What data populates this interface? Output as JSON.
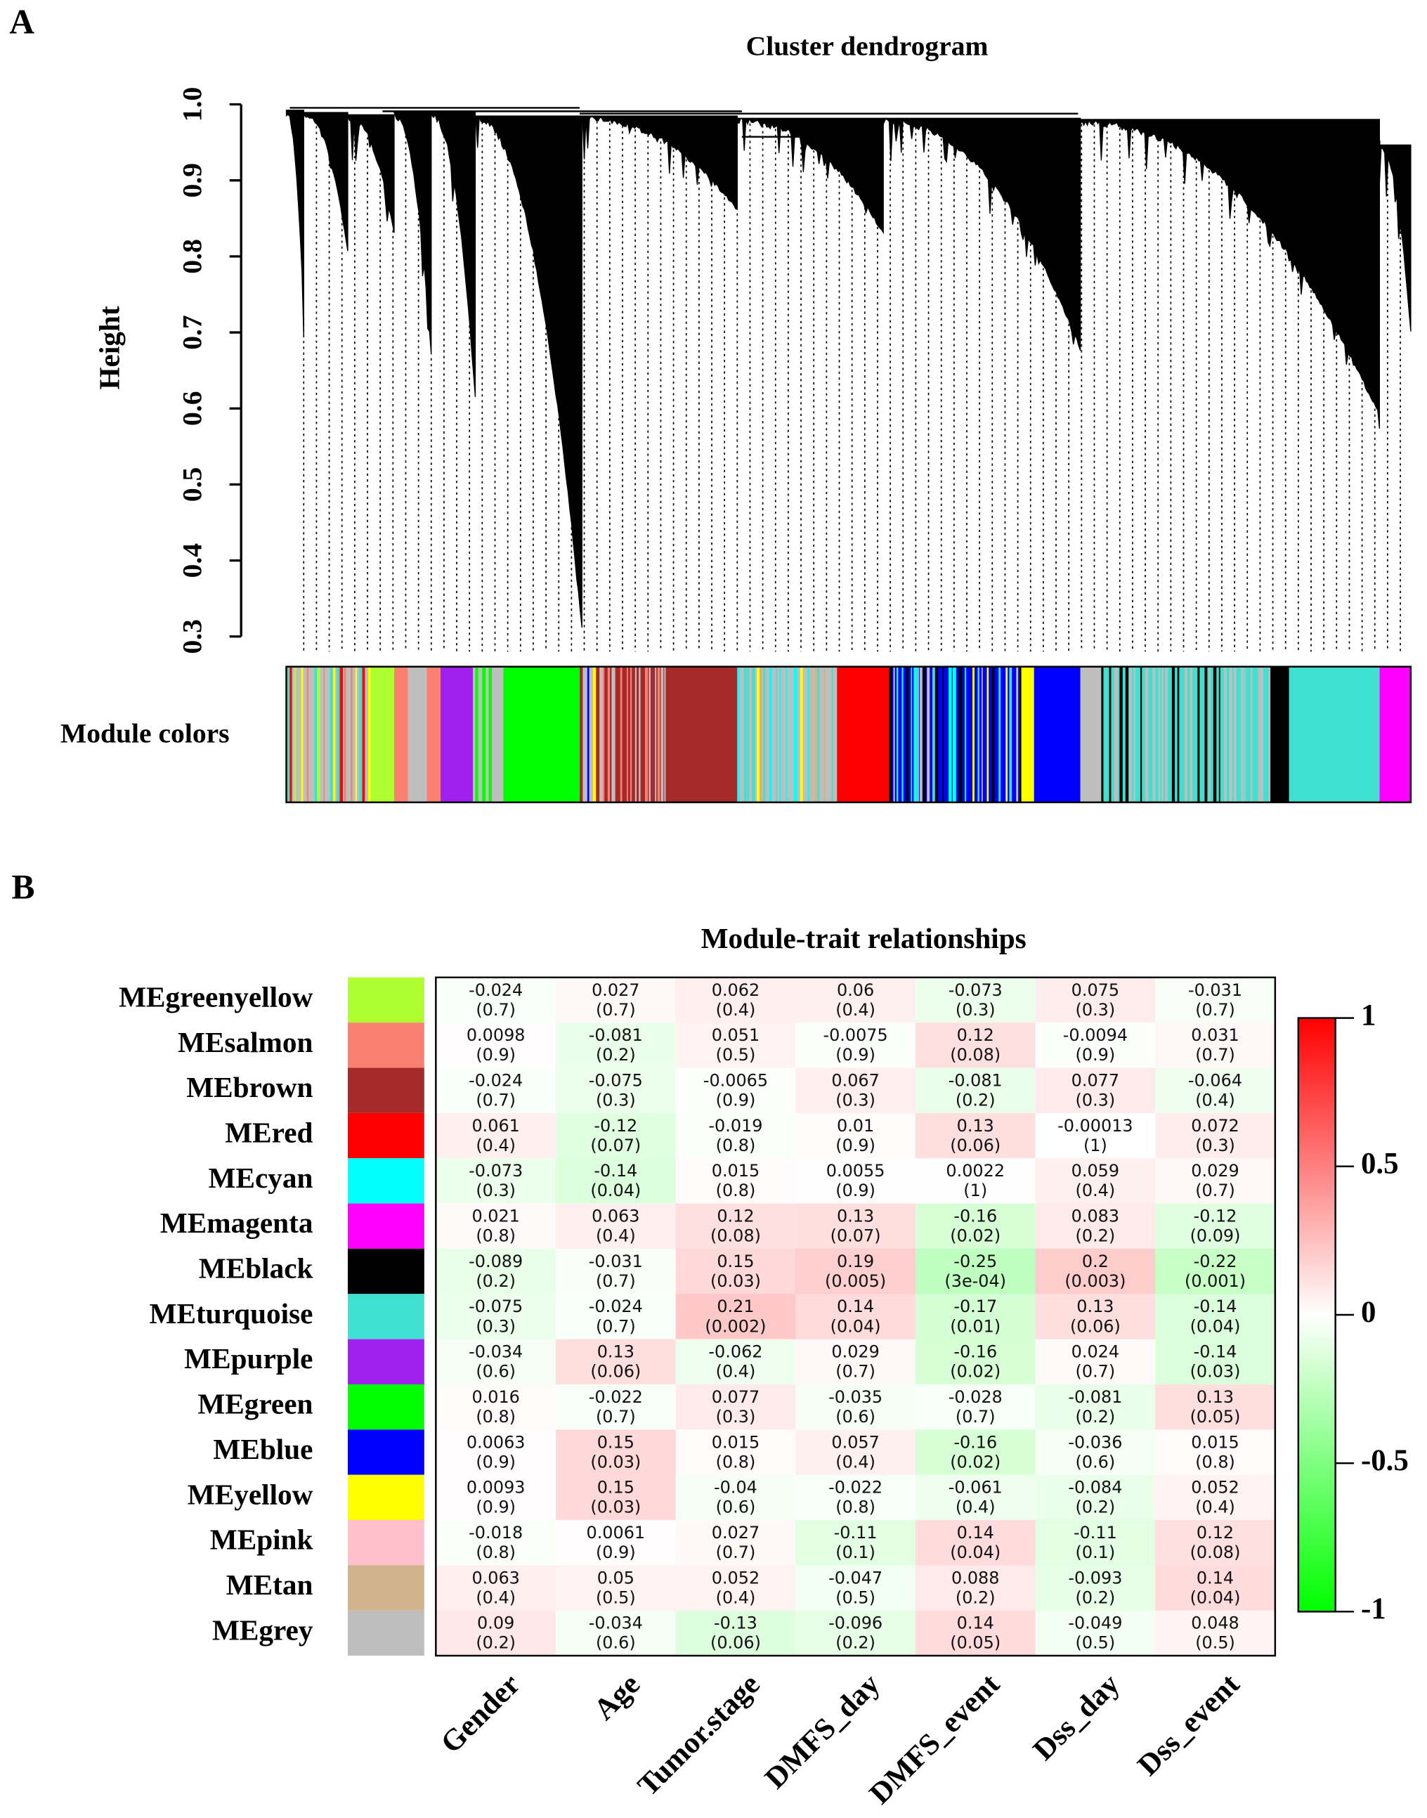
{
  "chart_data": [
    {
      "type": "dendrogram",
      "panel_label": "A",
      "title": "Cluster dendrogram",
      "y_label": "Height",
      "ylim": [
        0.3,
        1.0
      ],
      "yticks": [
        0.3,
        0.4,
        0.5,
        0.6,
        0.7,
        0.8,
        0.9,
        {
          "value": 1,
          "label": "1.0"
        }
      ],
      "color_bar_label": "Module colors"
    },
    {
      "type": "heatmap",
      "panel_label": "B",
      "title": "Module-trait relationships",
      "rows": [
        "MEgreenyellow",
        "MEsalmon",
        "MEbrown",
        "MEred",
        "MEcyan",
        "MEmagenta",
        "MEblack",
        "MEturquoise",
        "MEpurple",
        "MEgreen",
        "MEblue",
        "MEyellow",
        "MEpink",
        "MEtan",
        "MEgrey"
      ],
      "row_colors": [
        "#adff2f",
        "#fa8072",
        "#a52a2a",
        "#ff0000",
        "#00ffff",
        "#ff00ff",
        "#000000",
        "#40e0d0",
        "#a020f0",
        "#00ff00",
        "#0000ff",
        "#ffff00",
        "#ffc0cb",
        "#d2b48c",
        "#bebebe"
      ],
      "columns": [
        "Gender",
        "Age",
        "Tumor.stage",
        "DMFS_day",
        "DMFS_event",
        "Dss_day",
        "Dss_event"
      ],
      "values": [
        [
          -0.024,
          0.027,
          0.062,
          0.06,
          -0.073,
          0.075,
          -0.031
        ],
        [
          0.0098,
          -0.081,
          0.051,
          -0.0075,
          0.12,
          -0.0094,
          0.031
        ],
        [
          -0.024,
          -0.075,
          -0.0065,
          0.067,
          -0.081,
          0.077,
          -0.064
        ],
        [
          0.061,
          -0.12,
          -0.019,
          0.01,
          0.13,
          -0.00013,
          0.072
        ],
        [
          -0.073,
          -0.14,
          0.015,
          0.0055,
          0.0022,
          0.059,
          0.029
        ],
        [
          0.021,
          0.063,
          0.12,
          0.13,
          -0.16,
          0.083,
          -0.12
        ],
        [
          -0.089,
          -0.031,
          0.15,
          0.19,
          -0.25,
          0.2,
          -0.22
        ],
        [
          -0.075,
          -0.024,
          0.21,
          0.14,
          -0.17,
          0.13,
          -0.14
        ],
        [
          -0.034,
          0.13,
          -0.062,
          0.029,
          -0.16,
          0.024,
          -0.14
        ],
        [
          0.016,
          -0.022,
          0.077,
          -0.035,
          -0.028,
          -0.081,
          0.13
        ],
        [
          0.0063,
          0.15,
          0.015,
          0.057,
          -0.16,
          -0.036,
          0.015
        ],
        [
          0.0093,
          0.15,
          -0.04,
          -0.022,
          -0.061,
          -0.084,
          0.052
        ],
        [
          -0.018,
          0.0061,
          0.027,
          -0.11,
          0.14,
          -0.11,
          0.12
        ],
        [
          0.063,
          0.05,
          0.052,
          -0.047,
          0.088,
          -0.093,
          0.14
        ],
        [
          0.09,
          -0.034,
          -0.13,
          -0.096,
          0.14,
          -0.049,
          0.048
        ]
      ],
      "p_value_labels": [
        [
          "(0.7)",
          "(0.7)",
          "(0.4)",
          "(0.4)",
          "(0.3)",
          "(0.3)",
          "(0.7)"
        ],
        [
          "(0.9)",
          "(0.2)",
          "(0.5)",
          "(0.9)",
          "(0.08)",
          "(0.9)",
          "(0.7)"
        ],
        [
          "(0.7)",
          "(0.3)",
          "(0.9)",
          "(0.3)",
          "(0.2)",
          "(0.3)",
          "(0.4)"
        ],
        [
          "(0.4)",
          "(0.07)",
          "(0.8)",
          "(0.9)",
          "(0.06)",
          "(1)",
          "(0.3)"
        ],
        [
          "(0.3)",
          "(0.04)",
          "(0.8)",
          "(0.9)",
          "(1)",
          "(0.4)",
          "(0.7)"
        ],
        [
          "(0.8)",
          "(0.4)",
          "(0.08)",
          "(0.07)",
          "(0.02)",
          "(0.2)",
          "(0.09)"
        ],
        [
          "(0.2)",
          "(0.7)",
          "(0.03)",
          "(0.005)",
          "(3e-04)",
          "(0.003)",
          "(0.001)"
        ],
        [
          "(0.3)",
          "(0.7)",
          "(0.002)",
          "(0.04)",
          "(0.01)",
          "(0.06)",
          "(0.04)"
        ],
        [
          "(0.6)",
          "(0.06)",
          "(0.4)",
          "(0.7)",
          "(0.02)",
          "(0.7)",
          "(0.03)"
        ],
        [
          "(0.8)",
          "(0.7)",
          "(0.3)",
          "(0.6)",
          "(0.7)",
          "(0.2)",
          "(0.05)"
        ],
        [
          "(0.9)",
          "(0.03)",
          "(0.8)",
          "(0.4)",
          "(0.02)",
          "(0.6)",
          "(0.8)"
        ],
        [
          "(0.9)",
          "(0.03)",
          "(0.6)",
          "(0.8)",
          "(0.4)",
          "(0.2)",
          "(0.4)"
        ],
        [
          "(0.8)",
          "(0.9)",
          "(0.7)",
          "(0.1)",
          "(0.04)",
          "(0.1)",
          "(0.08)"
        ],
        [
          "(0.4)",
          "(0.5)",
          "(0.4)",
          "(0.5)",
          "(0.2)",
          "(0.2)",
          "(0.04)"
        ],
        [
          "(0.2)",
          "(0.6)",
          "(0.06)",
          "(0.2)",
          "(0.05)",
          "(0.5)",
          "(0.5)"
        ]
      ],
      "clim": [
        -1,
        1
      ],
      "cticks": [
        -1,
        -0.5,
        0,
        0.5,
        1
      ],
      "colormap": [
        "#00ff00",
        "#ffffff",
        "#ff0000"
      ]
    }
  ]
}
